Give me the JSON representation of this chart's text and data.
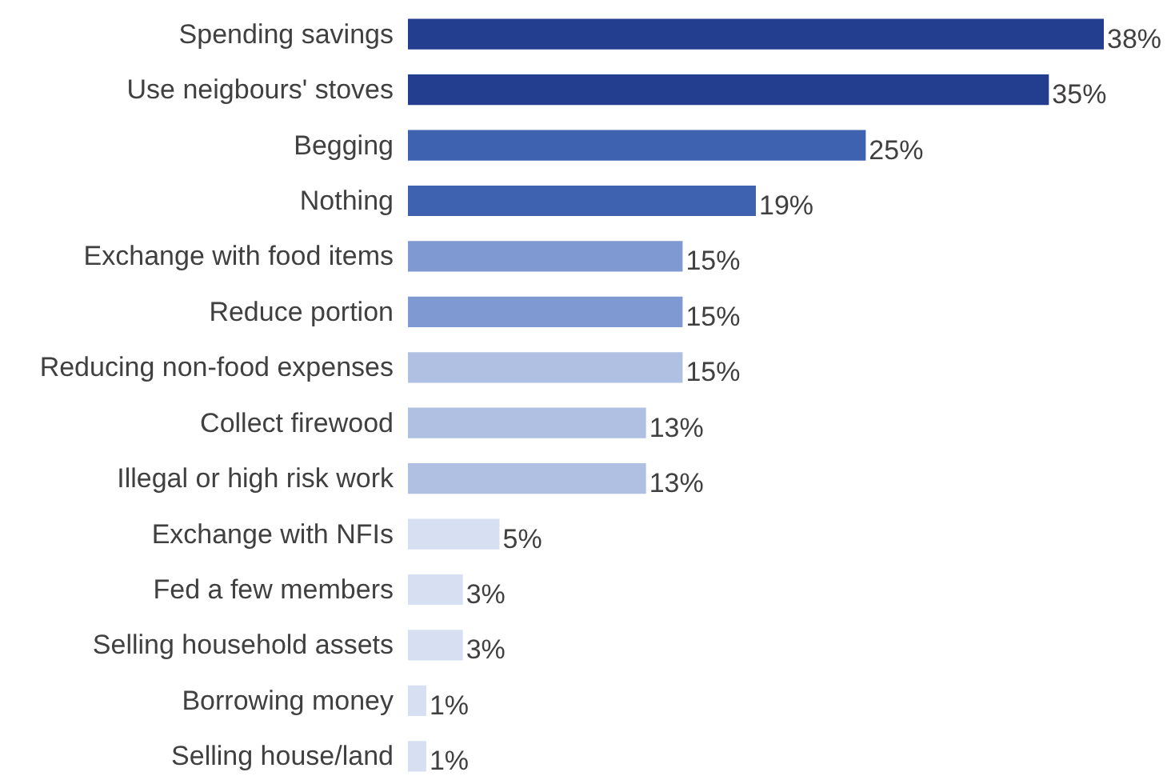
{
  "chart_data": {
    "type": "bar",
    "orientation": "horizontal",
    "categories": [
      "Spending savings",
      "Use neigbours' stoves",
      "Begging",
      "Nothing",
      "Exchange with food items",
      "Reduce portion",
      "Reducing non-food expenses",
      "Collect firewood",
      "Illegal or high risk work",
      "Exchange with NFIs",
      "Fed a few members",
      "Selling household assets",
      "Borrowing money",
      "Selling house/land"
    ],
    "values": [
      38,
      35,
      25,
      19,
      15,
      15,
      15,
      13,
      13,
      5,
      3,
      3,
      1,
      1
    ],
    "value_labels": [
      "38%",
      "35%",
      "25%",
      "19%",
      "15%",
      "15%",
      "15%",
      "13%",
      "13%",
      "5%",
      "3%",
      "3%",
      "1%",
      "1%"
    ],
    "colors": [
      "#233e8f",
      "#233e8f",
      "#3e62b0",
      "#3e62b0",
      "#7f99d3",
      "#7f99d3",
      "#afc0e3",
      "#afc0e3",
      "#afc0e3",
      "#d7e0f2",
      "#d7e0f2",
      "#d7e0f2",
      "#d7e0f2",
      "#d7e0f2"
    ],
    "tick_labels": "y",
    "grid": false
  }
}
